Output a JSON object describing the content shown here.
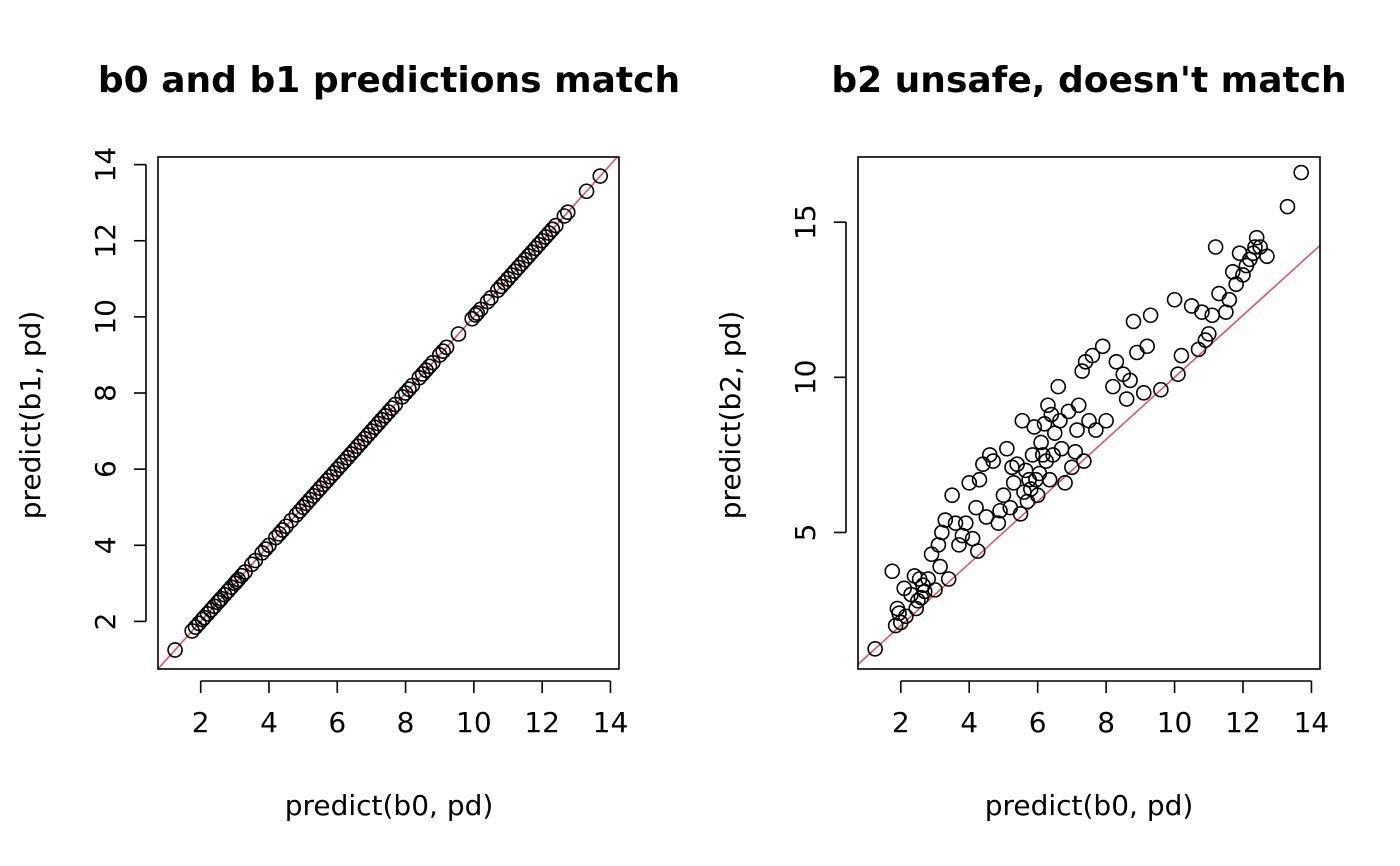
{
  "chart_data": [
    {
      "type": "scatter",
      "title": "b0 and b1 predictions match",
      "xlabel": "predict(b0, pd)",
      "ylabel": "predict(b1, pd)",
      "xlim": [
        0.75,
        14.25
      ],
      "ylim": [
        0.75,
        14.2
      ],
      "xticks": [
        2,
        4,
        6,
        8,
        10,
        12,
        14
      ],
      "yticks": [
        2,
        4,
        6,
        8,
        10,
        12,
        14
      ],
      "xtick_labels": [
        "2",
        "4",
        "6",
        "8",
        "10",
        "12",
        "14"
      ],
      "ytick_labels": [
        "2",
        "4",
        "6",
        "8",
        "10",
        "12",
        "14"
      ],
      "reference_line": {
        "intercept": 0,
        "slope": 1,
        "color": "#DF536B"
      },
      "point_style": "open-circle",
      "grid": false,
      "x": [
        1.25,
        1.75,
        1.85,
        1.95,
        2.05,
        2.1,
        2.2,
        2.3,
        2.4,
        2.5,
        2.55,
        2.6,
        2.7,
        2.8,
        2.9,
        3.0,
        3.05,
        3.1,
        3.2,
        3.3,
        3.5,
        3.6,
        3.8,
        3.9,
        4.0,
        4.2,
        4.3,
        4.4,
        4.5,
        4.65,
        4.8,
        4.9,
        5.0,
        5.1,
        5.2,
        5.3,
        5.4,
        5.5,
        5.6,
        5.7,
        5.8,
        5.9,
        6.0,
        6.1,
        6.2,
        6.3,
        6.4,
        6.5,
        6.6,
        6.7,
        6.8,
        6.9,
        7.0,
        7.1,
        7.2,
        7.3,
        7.4,
        7.5,
        7.6,
        7.7,
        7.9,
        8.0,
        8.1,
        8.2,
        8.4,
        8.5,
        8.6,
        8.7,
        8.8,
        9.0,
        9.1,
        9.2,
        9.55,
        9.95,
        10.05,
        10.1,
        10.2,
        10.4,
        10.5,
        10.7,
        10.8,
        10.9,
        11.0,
        11.1,
        11.2,
        11.3,
        11.4,
        11.5,
        11.6,
        11.7,
        11.8,
        11.9,
        12.0,
        12.1,
        12.2,
        12.3,
        12.4,
        12.65,
        12.75,
        13.3,
        13.7
      ],
      "y": [
        1.25,
        1.75,
        1.85,
        1.95,
        2.05,
        2.1,
        2.2,
        2.3,
        2.4,
        2.5,
        2.55,
        2.6,
        2.7,
        2.8,
        2.9,
        3.0,
        3.05,
        3.1,
        3.2,
        3.3,
        3.5,
        3.6,
        3.8,
        3.9,
        4.0,
        4.2,
        4.3,
        4.4,
        4.5,
        4.65,
        4.8,
        4.9,
        5.0,
        5.1,
        5.2,
        5.3,
        5.4,
        5.5,
        5.6,
        5.7,
        5.8,
        5.9,
        6.0,
        6.1,
        6.2,
        6.3,
        6.4,
        6.5,
        6.6,
        6.7,
        6.8,
        6.9,
        7.0,
        7.1,
        7.2,
        7.3,
        7.4,
        7.5,
        7.6,
        7.7,
        7.9,
        8.0,
        8.1,
        8.2,
        8.4,
        8.5,
        8.6,
        8.7,
        8.8,
        9.0,
        9.1,
        9.2,
        9.55,
        9.95,
        10.05,
        10.1,
        10.2,
        10.4,
        10.5,
        10.7,
        10.8,
        10.9,
        11.0,
        11.1,
        11.2,
        11.3,
        11.4,
        11.5,
        11.6,
        11.7,
        11.8,
        11.9,
        12.0,
        12.1,
        12.2,
        12.3,
        12.4,
        12.65,
        12.75,
        13.3,
        13.7
      ]
    },
    {
      "type": "scatter",
      "title": "b2 unsafe, doesn't match",
      "xlabel": "predict(b0, pd)",
      "ylabel": "predict(b2, pd)",
      "xlim": [
        0.75,
        14.25
      ],
      "ylim": [
        0.6,
        17.1
      ],
      "xticks": [
        2,
        4,
        6,
        8,
        10,
        12,
        14
      ],
      "yticks": [
        5,
        10,
        15
      ],
      "xtick_labels": [
        "2",
        "4",
        "6",
        "8",
        "10",
        "12",
        "14"
      ],
      "ytick_labels": [
        "5",
        "10",
        "15"
      ],
      "reference_line": {
        "intercept": 0,
        "slope": 1,
        "color": "#DF536B"
      },
      "point_style": "open-circle",
      "grid": false,
      "x": [
        1.25,
        1.75,
        1.85,
        1.9,
        1.95,
        2.0,
        2.1,
        2.15,
        2.3,
        2.4,
        2.45,
        2.5,
        2.55,
        2.6,
        2.65,
        2.7,
        2.8,
        2.9,
        3.0,
        3.1,
        3.15,
        3.2,
        3.3,
        3.4,
        3.5,
        3.6,
        3.7,
        3.8,
        3.9,
        4.0,
        4.1,
        4.2,
        4.25,
        4.3,
        4.4,
        4.5,
        4.6,
        4.7,
        4.85,
        4.9,
        5.0,
        5.1,
        5.2,
        5.25,
        5.3,
        5.4,
        5.5,
        5.55,
        5.6,
        5.65,
        5.7,
        5.75,
        5.8,
        5.85,
        5.9,
        5.95,
        6.0,
        6.05,
        6.1,
        6.15,
        6.2,
        6.25,
        6.3,
        6.35,
        6.4,
        6.45,
        6.5,
        6.6,
        6.65,
        6.7,
        6.8,
        6.9,
        7.0,
        7.1,
        7.15,
        7.2,
        7.3,
        7.35,
        7.4,
        7.5,
        7.6,
        7.7,
        7.9,
        8.0,
        8.2,
        8.3,
        8.5,
        8.6,
        8.7,
        8.8,
        8.9,
        9.1,
        9.2,
        9.3,
        9.6,
        10.0,
        10.1,
        10.2,
        10.5,
        10.7,
        10.8,
        10.9,
        11.0,
        11.1,
        11.2,
        11.3,
        11.5,
        11.6,
        11.7,
        11.8,
        11.9,
        12.0,
        12.1,
        12.2,
        12.3,
        12.35,
        12.4,
        12.5,
        12.7,
        13.3,
        13.7
      ],
      "y": [
        1.25,
        3.75,
        2.0,
        2.55,
        2.4,
        2.1,
        3.2,
        2.3,
        3.0,
        3.6,
        2.55,
        2.8,
        3.5,
        2.9,
        3.3,
        3.1,
        3.5,
        4.3,
        3.15,
        4.6,
        3.9,
        5.0,
        5.4,
        3.5,
        6.2,
        5.3,
        4.6,
        4.9,
        5.3,
        6.6,
        4.8,
        5.8,
        4.4,
        6.7,
        7.2,
        5.5,
        7.5,
        7.3,
        5.3,
        5.7,
        6.2,
        7.7,
        5.8,
        7.1,
        6.6,
        7.2,
        5.6,
        8.6,
        6.3,
        7.0,
        6.0,
        6.7,
        6.4,
        7.5,
        8.4,
        6.7,
        6.2,
        6.9,
        7.9,
        7.5,
        8.5,
        7.3,
        9.1,
        6.7,
        8.8,
        7.5,
        8.2,
        9.7,
        8.6,
        7.7,
        6.6,
        8.9,
        7.1,
        7.6,
        8.3,
        9.1,
        10.2,
        7.3,
        10.5,
        8.6,
        10.7,
        8.3,
        11.0,
        8.6,
        9.7,
        10.5,
        10.1,
        9.3,
        9.9,
        11.8,
        10.8,
        9.5,
        11.0,
        12.0,
        9.6,
        12.5,
        10.1,
        10.7,
        12.3,
        10.9,
        12.1,
        11.2,
        11.4,
        12.0,
        14.2,
        12.7,
        12.1,
        12.5,
        13.4,
        13.0,
        14.0,
        13.3,
        13.6,
        13.8,
        14.0,
        14.2,
        14.5,
        14.2,
        13.9,
        15.5,
        16.6
      ]
    }
  ]
}
